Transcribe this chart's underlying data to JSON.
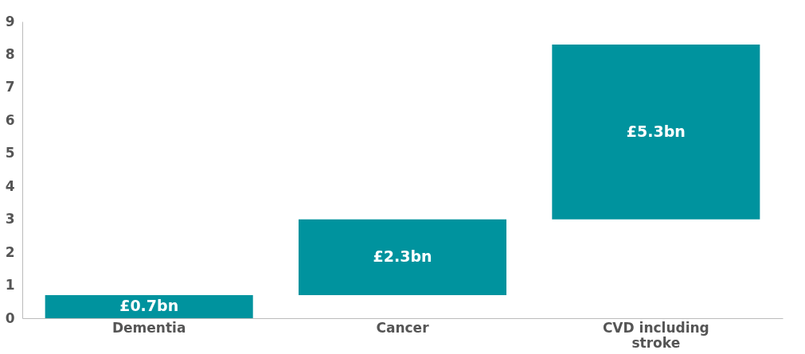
{
  "chart_data": {
    "type": "bar",
    "categories": [
      "Dementia",
      "Cancer",
      "CVD including stroke"
    ],
    "values": [
      0.7,
      2.3,
      5.3
    ],
    "base": [
      0,
      0.7,
      3.0
    ],
    "value_labels": [
      "£0.7bn",
      "£2.3bn",
      "£5.3bn"
    ],
    "color": "#00939e",
    "ylim": [
      0,
      9
    ],
    "yticks": [
      0,
      1,
      2,
      3,
      4,
      5,
      6,
      7,
      8,
      9
    ],
    "grid": false
  }
}
